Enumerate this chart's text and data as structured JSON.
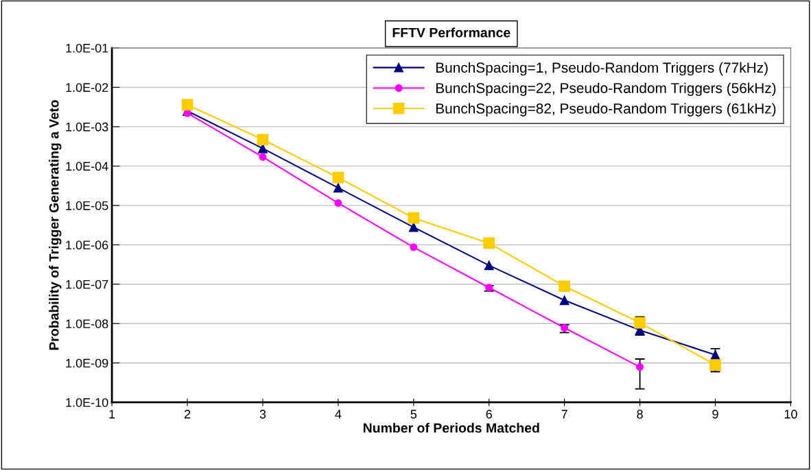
{
  "chart_data": {
    "type": "line",
    "title": "FFTV Performance",
    "xlabel": "Number of Periods Matched",
    "ylabel": "Probability of Trigger Generating a Veto",
    "log": "y",
    "grid": "y",
    "legend": "top right",
    "line_style": "solid",
    "xlim": [
      1,
      10
    ],
    "xticks": [
      1,
      2,
      3,
      4,
      5,
      6,
      7,
      8,
      9,
      10
    ],
    "ylim": [
      1e-10,
      0.1
    ],
    "yticks": [
      {
        "value": 1e-10,
        "label": "1.0E-10"
      },
      {
        "value": 1e-09,
        "label": "1.0E-09"
      },
      {
        "value": 1e-08,
        "label": "1.0E-08"
      },
      {
        "value": 1e-07,
        "label": "1.0E-07"
      },
      {
        "value": 1e-06,
        "label": "1.0E-06"
      },
      {
        "value": 1e-05,
        "label": "1.0E-05"
      },
      {
        "value": 0.0001,
        "label": "1.0E-04"
      },
      {
        "value": 0.001,
        "label": "1.0E-03"
      },
      {
        "value": 0.01,
        "label": "1.0E-02"
      },
      {
        "value": 0.1,
        "label": "1.0E-01"
      }
    ],
    "series": [
      {
        "name": "BunchSpacing=1, Pseudo-Random Triggers (77kHz)",
        "color": "#000080",
        "marker": "triangle",
        "x": [
          2,
          3,
          4,
          5,
          6,
          7,
          8,
          9
        ],
        "values": [
          0.0025,
          0.00028,
          2.8e-05,
          2.8e-06,
          3e-07,
          3.9e-08,
          6.8e-09,
          1.6e-09
        ],
        "errors": [
          null,
          null,
          null,
          null,
          null,
          null,
          [
            5.1e-09,
            6.8e-09
          ],
          [
            1.6e-09,
            2.3e-09
          ]
        ]
      },
      {
        "name": "BunchSpacing=22, Pseudo-Random Triggers (56kHz)",
        "color": "#ff00ff",
        "marker": "circle",
        "x": [
          2,
          3,
          4,
          5,
          6,
          7,
          8
        ],
        "values": [
          0.0022,
          0.00017,
          1.15e-05,
          8.7e-07,
          8.2e-08,
          7.8e-09,
          7.9e-10
        ],
        "errors": [
          null,
          null,
          null,
          null,
          [
            6.7e-08,
            9.2e-08
          ],
          [
            5.9e-09,
            9.3e-09
          ],
          [
            2.2e-10,
            1.26e-09
          ]
        ]
      },
      {
        "name": "BunchSpacing=82, Pseudo-Random Triggers (61kHz)",
        "color": "#ffcc00",
        "marker": "square",
        "x": [
          2,
          3,
          4,
          5,
          6,
          7,
          8,
          9
        ],
        "values": [
          0.0036,
          0.00047,
          5.1e-05,
          4.8e-06,
          1.1e-06,
          8.9e-08,
          1.05e-08,
          8.9e-10
        ],
        "errors": [
          null,
          null,
          null,
          null,
          null,
          null,
          [
            1.05e-08,
            1.48e-08
          ],
          [
            6e-10,
            8.9e-10
          ]
        ]
      }
    ]
  }
}
